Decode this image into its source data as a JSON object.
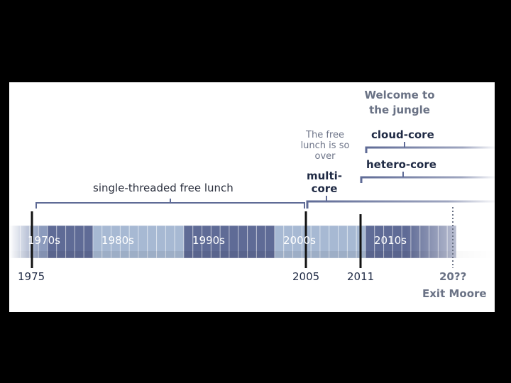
{
  "texts": {
    "welcome_title": "Welcome to the jungle",
    "free_lunch_over": "The free lunch is so over",
    "cloud_core": "cloud-core",
    "hetero_core": "hetero-core",
    "multi_core": "multi-core",
    "single_threaded": "single-threaded free lunch",
    "exit_moore": "Exit Moore"
  },
  "decades": [
    "1970s",
    "1980s",
    "1990s",
    "2000s",
    "2010s"
  ],
  "years": [
    "1975",
    "2005",
    "2011",
    "20??"
  ],
  "colors": {
    "dark_segment": "#5f6b96",
    "mid_segment": "#8c9bbd",
    "light_segment": "#a7b9d3",
    "bracket": "#5f6b96",
    "marker": "#111111",
    "future_marker": "#6a7285"
  }
}
